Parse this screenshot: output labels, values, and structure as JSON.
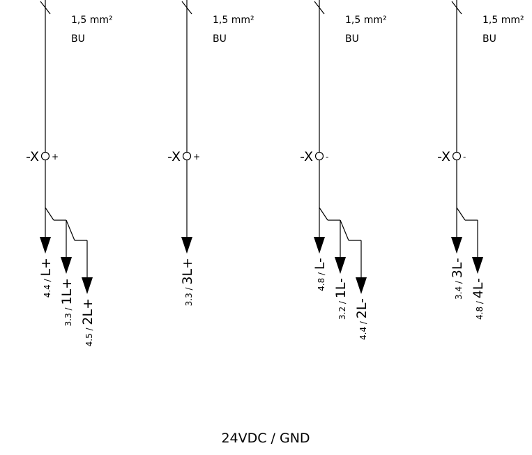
{
  "columns": [
    {
      "id": "col1",
      "wire": {
        "cross_section": "1,5 mm²",
        "color": "BU"
      },
      "terminal": {
        "label": "-X",
        "sign": "+"
      },
      "outputs": [
        {
          "page": "4.4 /",
          "name": "L+"
        },
        {
          "page": "3.3 /",
          "name": "1L+"
        },
        {
          "page": "4.5 /",
          "name": "2L+"
        }
      ]
    },
    {
      "id": "col2",
      "wire": {
        "cross_section": "1,5 mm²",
        "color": "BU"
      },
      "terminal": {
        "label": "-X",
        "sign": "+"
      },
      "outputs": [
        {
          "page": "3.3 /",
          "name": "3L+"
        }
      ]
    },
    {
      "id": "col3",
      "wire": {
        "cross_section": "1,5 mm²",
        "color": "BU"
      },
      "terminal": {
        "label": "-X",
        "sign": "-"
      },
      "outputs": [
        {
          "page": "4.8 /",
          "name": "L-"
        },
        {
          "page": "3.2 /",
          "name": "1L-"
        },
        {
          "page": "4.4 /",
          "name": "2L-"
        }
      ]
    },
    {
      "id": "col4",
      "wire": {
        "cross_section": "1,5 mm²",
        "color": "BU"
      },
      "terminal": {
        "label": "-X",
        "sign": "-"
      },
      "outputs": [
        {
          "page": "3.4 /",
          "name": "3L-"
        },
        {
          "page": "4.8 /",
          "name": "4L-"
        }
      ]
    }
  ],
  "footer": {
    "label": "24VDC / GND"
  },
  "colors": {
    "line": "#000000",
    "background": "#ffffff"
  }
}
